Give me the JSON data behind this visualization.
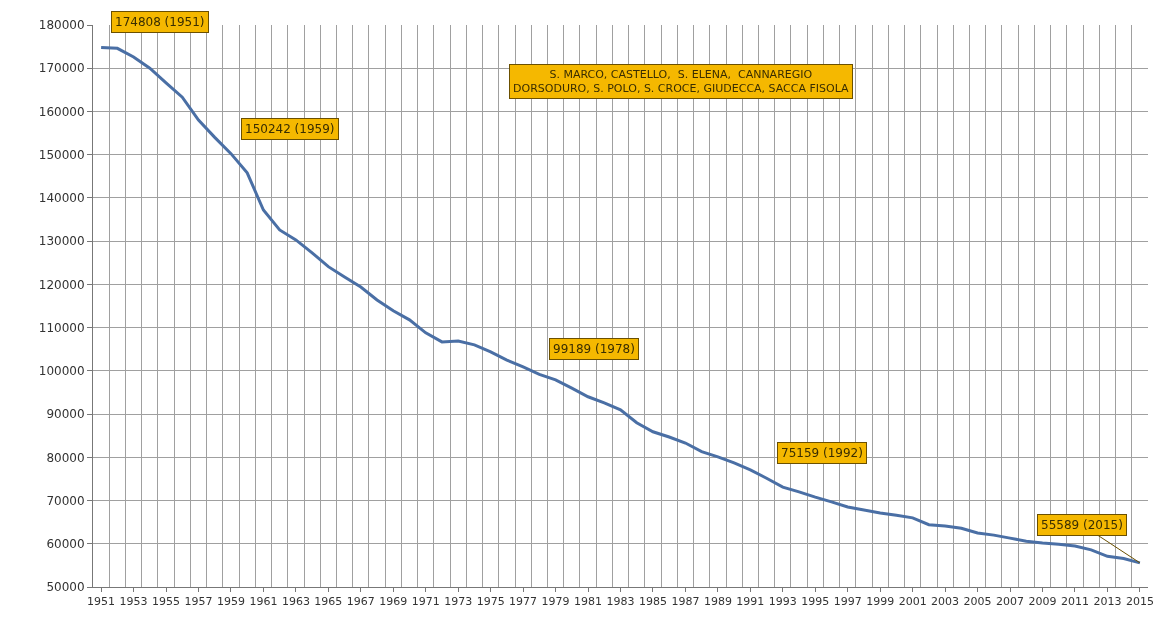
{
  "chart_data": {
    "type": "line",
    "x": [
      1951,
      1952,
      1953,
      1954,
      1955,
      1956,
      1957,
      1958,
      1959,
      1960,
      1961,
      1962,
      1963,
      1964,
      1965,
      1966,
      1967,
      1968,
      1969,
      1970,
      1971,
      1972,
      1973,
      1974,
      1975,
      1976,
      1977,
      1978,
      1979,
      1980,
      1981,
      1982,
      1983,
      1984,
      1985,
      1986,
      1987,
      1988,
      1989,
      1990,
      1991,
      1992,
      1993,
      1994,
      1995,
      1996,
      1997,
      1998,
      1999,
      2000,
      2001,
      2002,
      2003,
      2004,
      2005,
      2006,
      2007,
      2008,
      2009,
      2010,
      2011,
      2012,
      2013,
      2014,
      2015
    ],
    "series": [
      {
        "color": "#4a6fa5",
        "values": [
          174808,
          174600,
          172600,
          170000,
          166600,
          163300,
          158000,
          154000,
          150242,
          145800,
          137200,
          132600,
          130300,
          127300,
          124100,
          121700,
          119400,
          116400,
          113900,
          111800,
          108800,
          106700,
          106900,
          106000,
          104400,
          102500,
          100900,
          99189,
          97900,
          96000,
          94000,
          92600,
          91000,
          88000,
          85900,
          84700,
          83300,
          81300,
          80100,
          78700,
          77100,
          75159,
          73100,
          72000,
          70800,
          69700,
          68500,
          67800,
          67100,
          66600,
          66000,
          64400,
          64100,
          63600,
          62500,
          62000,
          61300,
          60600,
          60200,
          59900,
          59500,
          58600,
          57100,
          56600,
          55589
        ]
      }
    ],
    "xlim": [
      1950.5,
      2015.5
    ],
    "xticks": [
      1951,
      1953,
      1955,
      1957,
      1959,
      1961,
      1963,
      1965,
      1967,
      1969,
      1971,
      1973,
      1975,
      1977,
      1979,
      1981,
      1983,
      1985,
      1987,
      1989,
      1991,
      1993,
      1995,
      1997,
      1999,
      2001,
      2003,
      2005,
      2007,
      2009,
      2011,
      2013,
      2015
    ],
    "ylim": [
      50000,
      180000
    ],
    "yticks": [
      50000,
      60000,
      70000,
      80000,
      90000,
      100000,
      110000,
      120000,
      130000,
      140000,
      150000,
      160000,
      170000,
      180000
    ],
    "grid": true,
    "marker": "none",
    "line_style": "solid",
    "annotations": [
      {
        "text": "174808 (1951)",
        "x": 1951,
        "y": 174808
      },
      {
        "text": "150242 (1959)",
        "x": 1959,
        "y": 150242
      },
      {
        "text": "99189 (1978)",
        "x": 1978,
        "y": 99189
      },
      {
        "text": "75159 (1992)",
        "x": 1992,
        "y": 75159
      },
      {
        "text": "55589 (2015)",
        "x": 2015,
        "y": 55589
      },
      "S. MARCO, CASTELLO,  S. ELENA,  CANNAREGIO\nDORSODURO, S. POLO, S. CROCE, GIUDECCA, SACCA FISOLA"
    ]
  }
}
